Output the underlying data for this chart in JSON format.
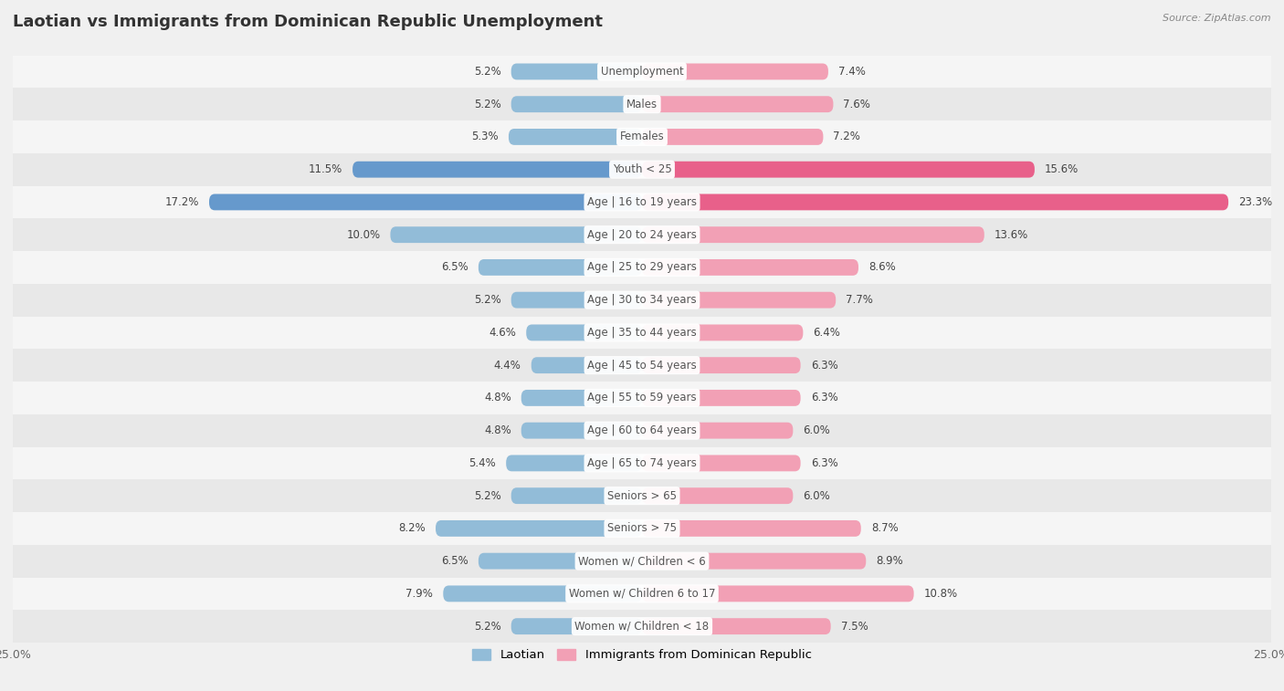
{
  "title": "Laotian vs Immigrants from Dominican Republic Unemployment",
  "source": "Source: ZipAtlas.com",
  "categories": [
    "Unemployment",
    "Males",
    "Females",
    "Youth < 25",
    "Age | 16 to 19 years",
    "Age | 20 to 24 years",
    "Age | 25 to 29 years",
    "Age | 30 to 34 years",
    "Age | 35 to 44 years",
    "Age | 45 to 54 years",
    "Age | 55 to 59 years",
    "Age | 60 to 64 years",
    "Age | 65 to 74 years",
    "Seniors > 65",
    "Seniors > 75",
    "Women w/ Children < 6",
    "Women w/ Children 6 to 17",
    "Women w/ Children < 18"
  ],
  "laotian": [
    5.2,
    5.2,
    5.3,
    11.5,
    17.2,
    10.0,
    6.5,
    5.2,
    4.6,
    4.4,
    4.8,
    4.8,
    5.4,
    5.2,
    8.2,
    6.5,
    7.9,
    5.2
  ],
  "dominican": [
    7.4,
    7.6,
    7.2,
    15.6,
    23.3,
    13.6,
    8.6,
    7.7,
    6.4,
    6.3,
    6.3,
    6.0,
    6.3,
    6.0,
    8.7,
    8.9,
    10.8,
    7.5
  ],
  "laotian_color": "#92bcd8",
  "dominican_color": "#f2a0b5",
  "laotian_highlight_color": "#6699cc",
  "dominican_highlight_color": "#e8608a",
  "row_color_odd": "#f5f5f5",
  "row_color_even": "#e8e8e8",
  "background_color": "#f0f0f0",
  "xlim": 25.0,
  "bar_height": 0.5,
  "highlight_rows": [
    3,
    4
  ],
  "legend_label_laotian": "Laotian",
  "legend_label_dominican": "Immigrants from Dominican Republic",
  "title_fontsize": 13,
  "label_fontsize": 8.5,
  "source_text": "Source: ZipAtlas.com"
}
